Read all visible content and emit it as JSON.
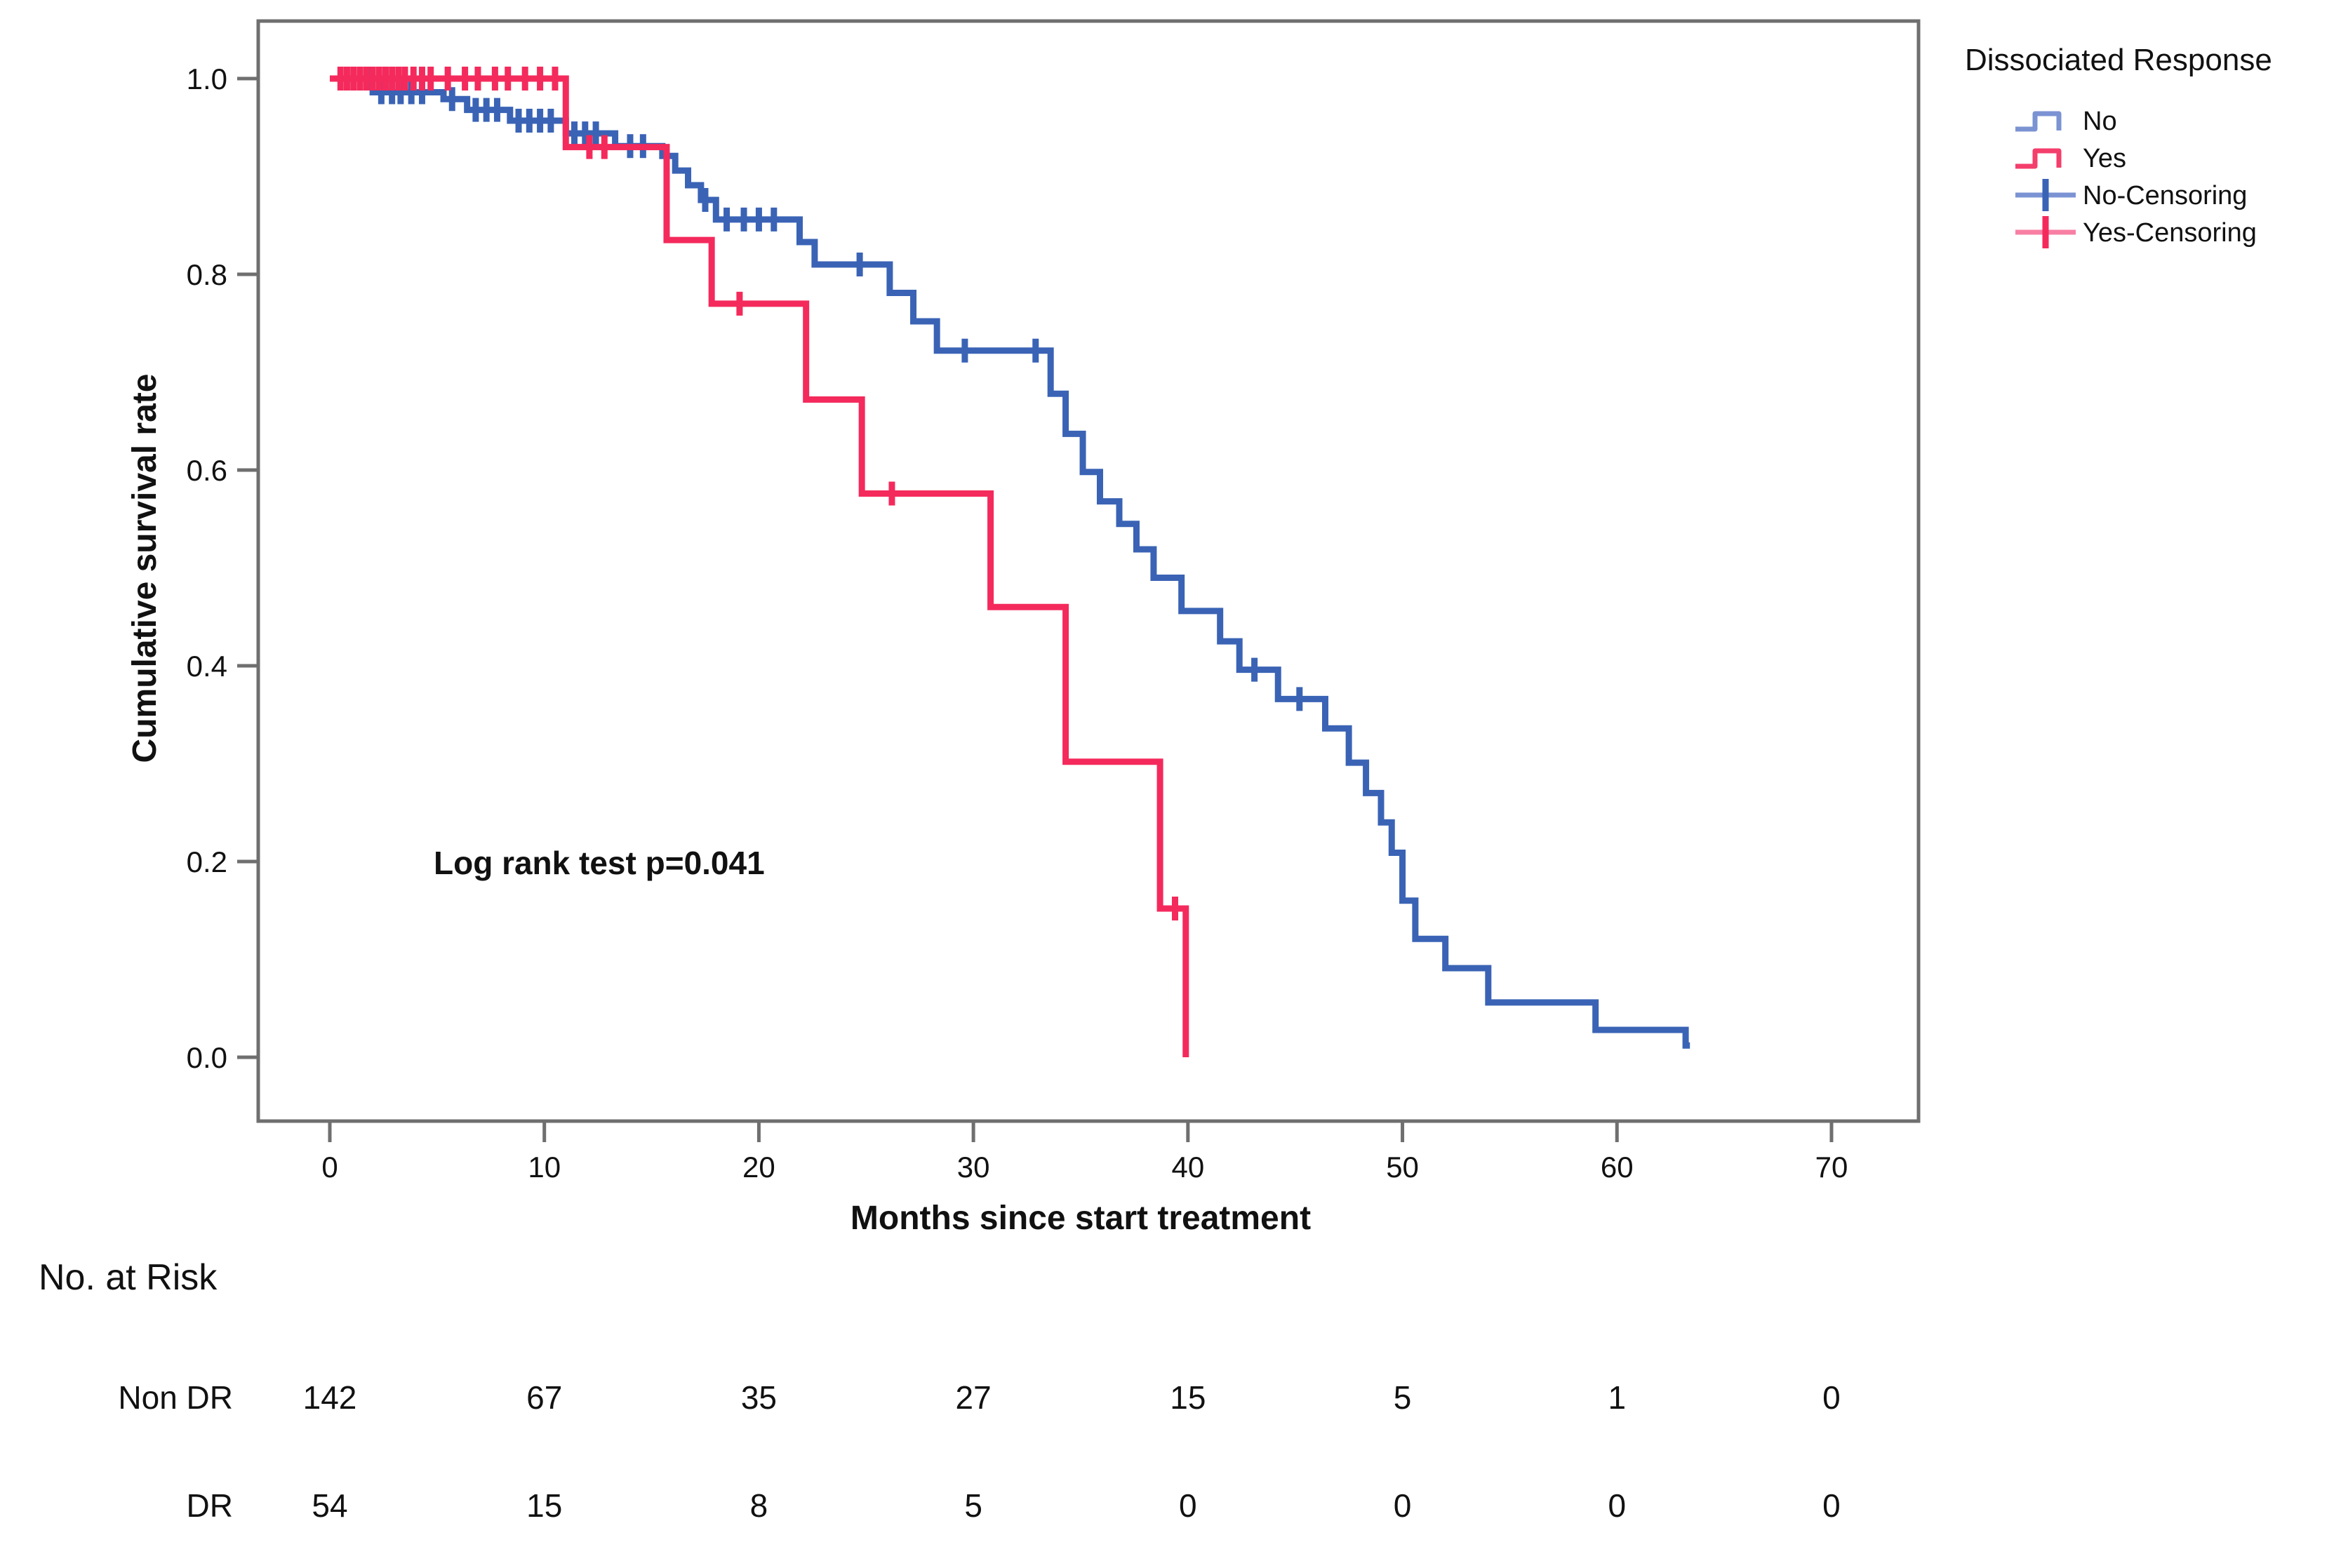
{
  "page": {
    "background": "#ffffff"
  },
  "chart_data": {
    "type": "line",
    "subtype": "kaplan-meier-step",
    "title": "",
    "xlabel": "Months since start treatment",
    "ylabel": "Cumulative survival rate",
    "annotation": "Log rank test p=0.041",
    "xlim": [
      -3.3,
      74
    ],
    "ylim": [
      -0.065,
      1.06
    ],
    "grid": false,
    "x_ticks": [
      0,
      10,
      20,
      30,
      40,
      50,
      60,
      70
    ],
    "y_ticks": [
      {
        "v": 0.0,
        "label": "0.0"
      },
      {
        "v": 0.2,
        "label": "0.2"
      },
      {
        "v": 0.4,
        "label": "0.4"
      },
      {
        "v": 0.6,
        "label": "0.6"
      },
      {
        "v": 0.8,
        "label": "0.8"
      },
      {
        "v": 1.0,
        "label": "1.0"
      }
    ],
    "legend": {
      "title": "Dissociated Response",
      "position": "top-right",
      "entries": [
        {
          "label": "No",
          "kind": "step",
          "line": "#7b93d3",
          "accent": "#3a63b5"
        },
        {
          "label": "Yes",
          "kind": "step",
          "line": "#f43e6c",
          "accent": "#f42a5c"
        },
        {
          "label": "No-Censoring",
          "kind": "censor",
          "line": "#7b93d3",
          "accent": "#3a63b5"
        },
        {
          "label": "Yes-Censoring",
          "kind": "censor",
          "line": "#f87fa4",
          "accent": "#f42a5c"
        }
      ]
    },
    "series": [
      {
        "name": "No",
        "group": "Non DR",
        "color": "#3a63b5",
        "end": 63.4,
        "steps": [
          [
            0,
            1.0
          ],
          [
            2.0,
            0.986
          ],
          [
            5.3,
            0.979
          ],
          [
            6.4,
            0.968
          ],
          [
            8.4,
            0.957
          ],
          [
            11.0,
            0.944
          ],
          [
            13.3,
            0.931
          ],
          [
            15.5,
            0.921
          ],
          [
            16.1,
            0.906
          ],
          [
            16.7,
            0.891
          ],
          [
            17.3,
            0.876
          ],
          [
            18.0,
            0.856
          ],
          [
            21.9,
            0.833
          ],
          [
            22.6,
            0.81
          ],
          [
            26.1,
            0.781
          ],
          [
            27.2,
            0.752
          ],
          [
            28.3,
            0.722
          ],
          [
            33.6,
            0.678
          ],
          [
            34.3,
            0.637
          ],
          [
            35.1,
            0.598
          ],
          [
            35.9,
            0.568
          ],
          [
            36.8,
            0.545
          ],
          [
            37.6,
            0.519
          ],
          [
            38.4,
            0.49
          ],
          [
            39.7,
            0.456
          ],
          [
            41.5,
            0.425
          ],
          [
            42.4,
            0.396
          ],
          [
            44.2,
            0.366
          ],
          [
            46.4,
            0.336
          ],
          [
            47.5,
            0.301
          ],
          [
            48.3,
            0.27
          ],
          [
            49.0,
            0.24
          ],
          [
            49.5,
            0.209
          ],
          [
            50.0,
            0.16
          ],
          [
            50.6,
            0.121
          ],
          [
            52.0,
            0.091
          ],
          [
            54.0,
            0.056
          ],
          [
            59.0,
            0.028
          ],
          [
            63.2,
            0.012
          ]
        ],
        "censor_months": [
          1.8,
          2.4,
          2.9,
          3.3,
          3.8,
          4.3,
          5.7,
          6.8,
          7.3,
          7.8,
          8.8,
          9.3,
          9.8,
          10.3,
          11.4,
          11.9,
          12.4,
          14.0,
          14.6,
          17.5,
          18.5,
          19.3,
          20.0,
          20.7,
          24.7,
          29.6,
          32.9,
          43.1,
          45.2
        ]
      },
      {
        "name": "Yes",
        "group": "DR",
        "color": "#f42a5c",
        "end": 39.9,
        "steps": [
          [
            0,
            1.0
          ],
          [
            11.0,
            0.93
          ],
          [
            15.7,
            0.835
          ],
          [
            17.8,
            0.77
          ],
          [
            22.2,
            0.672
          ],
          [
            24.8,
            0.576
          ],
          [
            30.8,
            0.46
          ],
          [
            34.3,
            0.302
          ],
          [
            38.7,
            0.152
          ],
          [
            39.9,
            0.0
          ]
        ],
        "censor_months": [
          0.5,
          0.8,
          1.1,
          1.4,
          1.7,
          2.0,
          2.3,
          2.6,
          2.9,
          3.2,
          3.5,
          3.9,
          4.3,
          4.7,
          5.5,
          6.3,
          6.9,
          7.7,
          8.3,
          9.1,
          9.8,
          10.5,
          12.1,
          12.8,
          19.1,
          26.2,
          39.4
        ]
      }
    ]
  },
  "risk_table": {
    "heading": "No. at Risk",
    "columns": [
      0,
      10,
      20,
      30,
      40,
      50,
      60,
      70
    ],
    "rows": [
      {
        "label": "Non DR",
        "values": [
          "142",
          "67",
          "35",
          "27",
          "15",
          "5",
          "1",
          "0"
        ]
      },
      {
        "label": "DR",
        "values": [
          "54",
          "15",
          "8",
          "5",
          "0",
          "0",
          "0",
          "0"
        ]
      }
    ]
  }
}
